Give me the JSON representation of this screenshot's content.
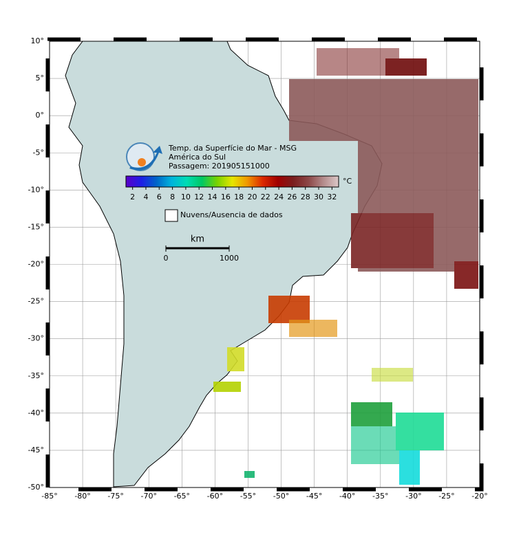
{
  "header": {
    "title": "Temp. da Superfície do Mar - MSG",
    "region": "América do Sul",
    "pass": "Passagem: 201905151000"
  },
  "colorbar": {
    "unit": "°C",
    "range": [
      1,
      33
    ],
    "ticks": [
      2,
      4,
      6,
      8,
      10,
      12,
      14,
      16,
      18,
      20,
      22,
      24,
      26,
      28,
      30,
      32
    ],
    "colors": [
      "#5a00c8",
      "#1e1ee6",
      "#0064c8",
      "#00b4dc",
      "#00dcb4",
      "#00c864",
      "#78d200",
      "#e6e600",
      "#f09600",
      "#dc2800",
      "#a00000",
      "#7a1e1e",
      "#8c4646",
      "#b48c8c",
      "#dcc8c8"
    ]
  },
  "legend": {
    "no_data": "Nuvens/Ausencia de dados"
  },
  "scale": {
    "unit": "km",
    "range": [
      0,
      1000
    ],
    "ticks": [
      0,
      1000
    ]
  },
  "map": {
    "xlim": [
      -85,
      -20
    ],
    "ylim": [
      -50,
      10
    ],
    "xticks": [
      {
        "value": -85,
        "label": "-85°"
      },
      {
        "value": -80,
        "label": "-80°"
      },
      {
        "value": -75,
        "label": "-75°"
      },
      {
        "value": -70,
        "label": "-70°"
      },
      {
        "value": -65,
        "label": "-65°"
      },
      {
        "value": -60,
        "label": "-60°"
      },
      {
        "value": -55,
        "label": "-55°"
      },
      {
        "value": -50,
        "label": "-50°"
      },
      {
        "value": -45,
        "label": "-45°"
      },
      {
        "value": -40,
        "label": "-40°"
      },
      {
        "value": -35,
        "label": "-35°"
      },
      {
        "value": -30,
        "label": "-30°"
      },
      {
        "value": -25,
        "label": "-25°"
      },
      {
        "value": -20,
        "label": "-20°"
      }
    ],
    "yticks": [
      {
        "value": 10,
        "label": "10°"
      },
      {
        "value": 5,
        "label": "5°"
      },
      {
        "value": 0,
        "label": "0°"
      },
      {
        "value": -5,
        "label": "-5°"
      },
      {
        "value": -10,
        "label": "-10°"
      },
      {
        "value": -15,
        "label": "-15°"
      },
      {
        "value": -20,
        "label": "-20°"
      },
      {
        "value": -25,
        "label": "-25°"
      },
      {
        "value": -30,
        "label": "-30°"
      },
      {
        "value": -35,
        "label": "-35°"
      },
      {
        "value": -40,
        "label": "-40°"
      },
      {
        "value": -45,
        "label": "-45°"
      },
      {
        "value": -50,
        "label": "-50°"
      }
    ]
  }
}
